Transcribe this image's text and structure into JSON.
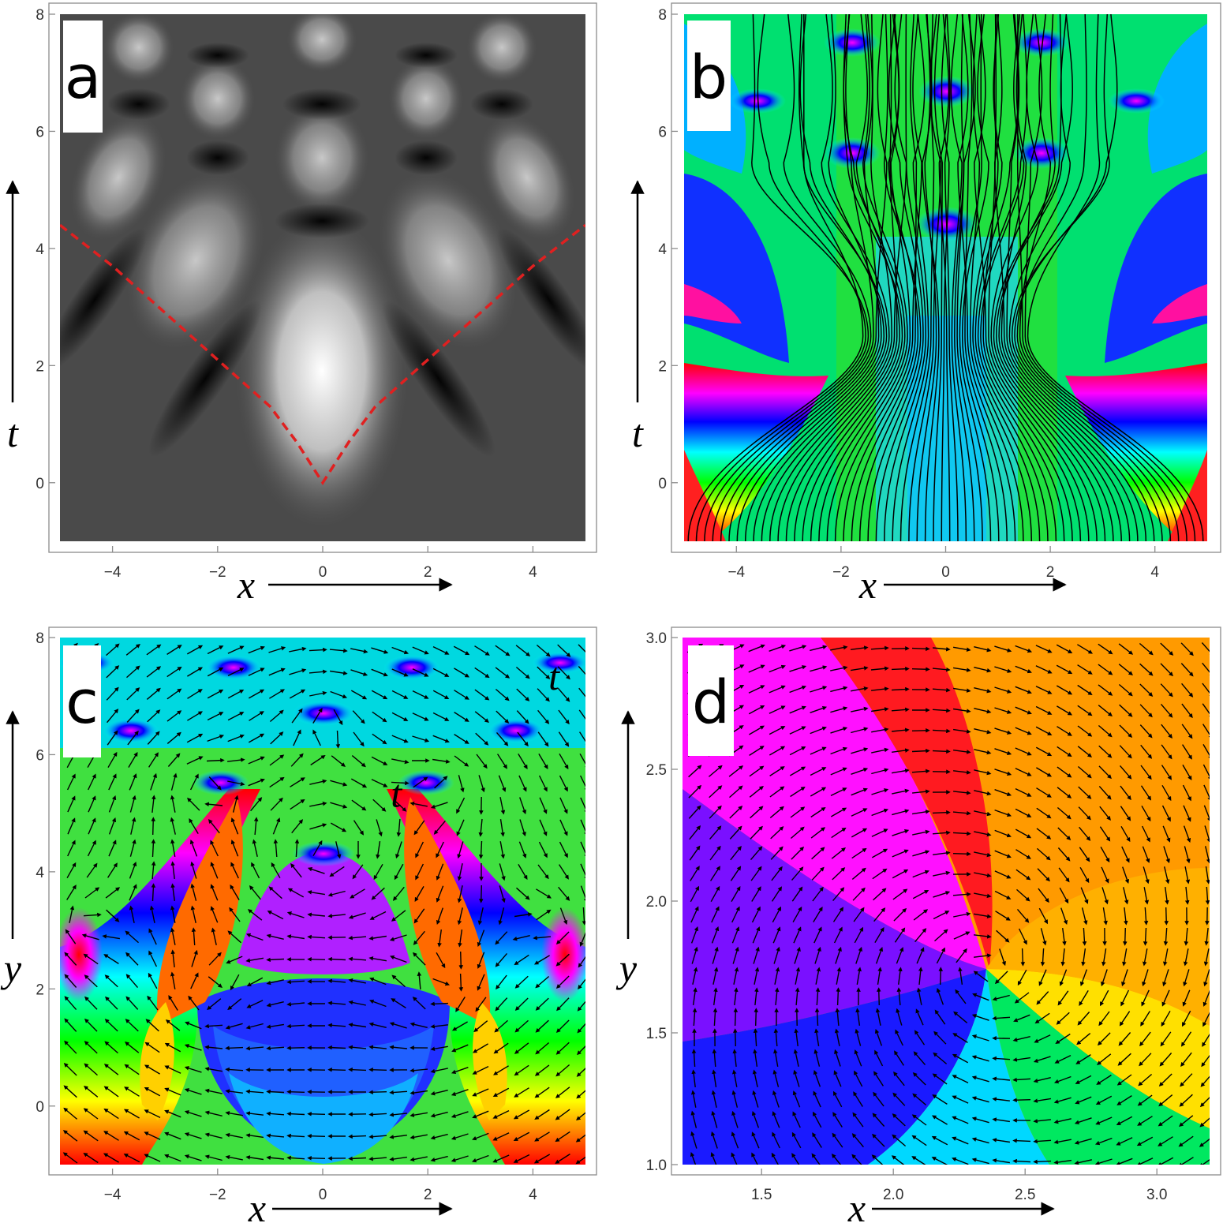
{
  "chart_data": [
    {
      "panel": "a",
      "type": "heatmap",
      "colormap": "grayscale",
      "xlabel": "x",
      "ylabel": "t",
      "xlim": [
        -5,
        5
      ],
      "ylim": [
        -1,
        8
      ],
      "xticks": [
        -4,
        -2,
        0,
        2,
        4
      ],
      "xtick_labels": [
        "−4",
        "−2",
        "0",
        "2",
        "4"
      ],
      "yticks": [
        0,
        2,
        4,
        6,
        8
      ],
      "ytick_labels": [
        "0",
        "2",
        "4",
        "6",
        "8"
      ],
      "overlay": {
        "type": "dashed-line",
        "color": "#e02020",
        "points": [
          [
            -5,
            4.4
          ],
          [
            -4,
            3.7
          ],
          [
            -3,
            2.9
          ],
          [
            -2,
            2.1
          ],
          [
            -1,
            1.3
          ],
          [
            -0.5,
            0.7
          ],
          [
            0,
            0
          ],
          [
            0.5,
            0.7
          ],
          [
            1,
            1.3
          ],
          [
            2,
            2.1
          ],
          [
            3,
            2.9
          ],
          [
            4,
            3.7
          ],
          [
            5,
            4.4
          ]
        ]
      }
    },
    {
      "panel": "b",
      "type": "heatmap",
      "colormap": "phase-hue",
      "overlay": "streamlines",
      "xlabel": "x",
      "ylabel": "t",
      "xlim": [
        -5,
        5
      ],
      "ylim": [
        -1,
        8
      ],
      "xticks": [
        -4,
        -2,
        0,
        2,
        4
      ],
      "xtick_labels": [
        "−4",
        "−2",
        "0",
        "2",
        "4"
      ],
      "yticks": [
        0,
        2,
        4,
        6,
        8
      ],
      "ytick_labels": [
        "0",
        "2",
        "4",
        "6",
        "8"
      ]
    },
    {
      "panel": "c",
      "type": "heatmap",
      "colormap": "phase-hue",
      "overlay": "vector-stream",
      "xlabel": "x",
      "ylabel": "y",
      "xlim": [
        -5,
        5
      ],
      "ylim": [
        -1,
        8
      ],
      "xticks": [
        -4,
        -2,
        0,
        2,
        4
      ],
      "xtick_labels": [
        "−4",
        "−2",
        "0",
        "2",
        "4"
      ],
      "yticks": [
        0,
        2,
        4,
        6,
        8
      ],
      "ytick_labels": [
        "0",
        "2",
        "4",
        "6",
        "8"
      ],
      "annotations": [
        {
          "text": "t",
          "x": 4.4,
          "y": 7.3
        },
        {
          "text": "t",
          "x": 1.4,
          "y": 5.3
        }
      ]
    },
    {
      "panel": "d",
      "type": "heatmap",
      "colormap": "phase-hue",
      "overlay": "vector-stream",
      "vortex": [
        2.35,
        1.75
      ],
      "xlabel": "x",
      "ylabel": "y",
      "xlim": [
        1.2,
        3.2
      ],
      "ylim": [
        1.0,
        3.0
      ],
      "xticks": [
        1.5,
        2.0,
        2.5,
        3.0
      ],
      "xtick_labels": [
        "1.5",
        "2.0",
        "2.5",
        "3.0"
      ],
      "yticks": [
        1.0,
        1.5,
        2.0,
        2.5,
        3.0
      ],
      "ytick_labels": [
        "1.0",
        "1.5",
        "2.0",
        "2.5",
        "3.0"
      ]
    }
  ]
}
